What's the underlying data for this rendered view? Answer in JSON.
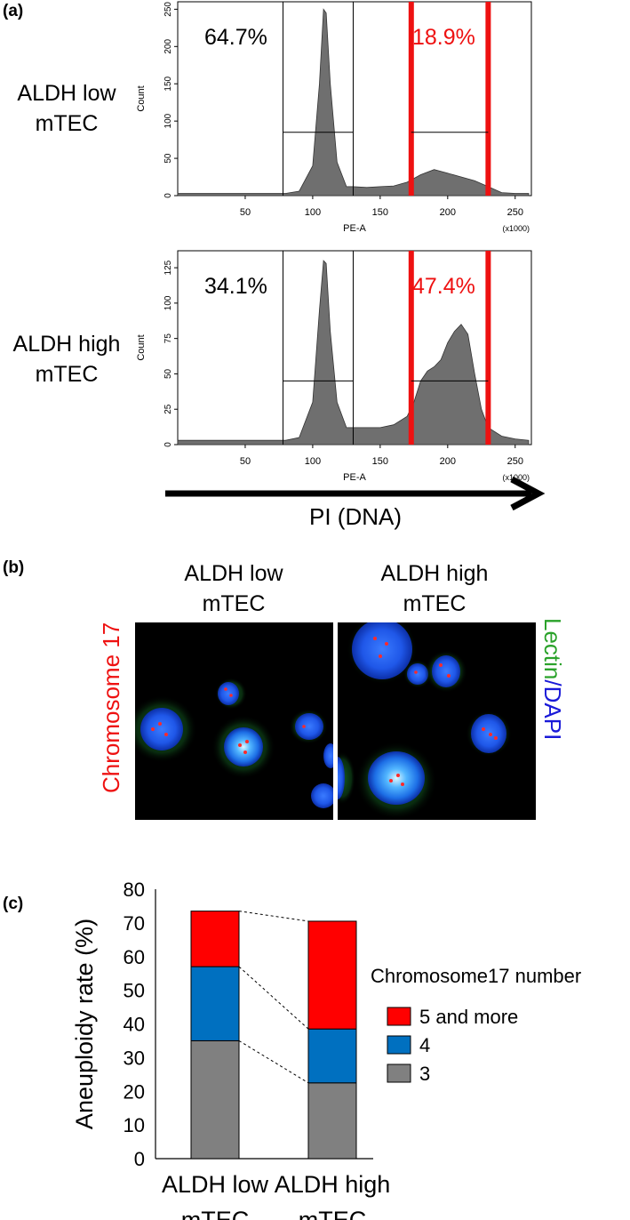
{
  "panels": {
    "a": "(a)",
    "b": "(b)",
    "c": "(c)"
  },
  "colors": {
    "gate_red": "#ee1111",
    "histogram_fill": "#6f6f6f",
    "bar_red": "#ff0000",
    "bar_blue": "#0070c0",
    "bar_gray": "#808080",
    "lectin_green": "#2aa22a",
    "dapi_blue": "#1a1ad8"
  },
  "panel_a": {
    "rows": [
      {
        "label_line1": "ALDH low",
        "label_line2": "mTEC",
        "pct_black": "64.7%",
        "pct_red": "18.9%"
      },
      {
        "label_line1": "ALDH high",
        "label_line2": "mTEC",
        "pct_black": "34.1%",
        "pct_red": "47.4%"
      }
    ],
    "ylabel": "Count",
    "xlabel": "PE-A",
    "x_multiplier": "(x1000)",
    "xticks": [
      "50",
      "100",
      "150",
      "200",
      "250"
    ],
    "arrow_label": "PI (DNA)"
  },
  "panel_b": {
    "col_low_line1": "ALDH low",
    "col_low_line2": "mTEC",
    "col_high_line1": "ALDH high",
    "col_high_line2": "mTEC",
    "left_label": "Chromosome 17",
    "right_label_part1": "Lectin",
    "right_label_sep": "/",
    "right_label_part2": "DAPI"
  },
  "chart_data": [
    {
      "type": "area",
      "x": [
        0,
        80,
        90,
        100,
        105,
        108,
        110,
        113,
        118,
        125,
        130,
        140,
        150,
        160,
        170,
        180,
        190,
        200,
        210,
        220,
        230,
        240,
        250,
        260
      ],
      "values": [
        3,
        3,
        6,
        40,
        150,
        250,
        245,
        150,
        45,
        12,
        12,
        11,
        12,
        13,
        18,
        28,
        35,
        30,
        25,
        20,
        12,
        4,
        3,
        3
      ],
      "xlabel": "PE-A",
      "ylabel": "Count",
      "xlim": [
        0,
        262
      ],
      "ylim": [
        0,
        260
      ],
      "yticks": [
        0,
        50,
        100,
        150,
        200,
        250
      ],
      "xticks": [
        50,
        100,
        150,
        200,
        250
      ],
      "annotations": [
        "64.7%",
        "18.9%"
      ]
    },
    {
      "type": "area",
      "x": [
        0,
        80,
        90,
        100,
        105,
        108,
        110,
        113,
        118,
        125,
        130,
        140,
        150,
        160,
        170,
        175,
        180,
        185,
        190,
        195,
        200,
        205,
        210,
        215,
        220,
        225,
        230,
        240,
        250,
        260
      ],
      "values": [
        3,
        3,
        5,
        30,
        95,
        130,
        128,
        80,
        30,
        12,
        12,
        12,
        12,
        14,
        20,
        30,
        45,
        52,
        55,
        60,
        72,
        80,
        85,
        78,
        50,
        25,
        12,
        6,
        4,
        3
      ],
      "xlabel": "PE-A",
      "ylabel": "Count",
      "xlim": [
        0,
        262
      ],
      "ylim": [
        0,
        137
      ],
      "yticks": [
        0,
        25,
        50,
        75,
        100,
        125
      ],
      "xticks": [
        50,
        100,
        150,
        200,
        250
      ],
      "annotations": [
        "34.1%",
        "47.4%"
      ]
    },
    {
      "type": "bar",
      "stacked": true,
      "categories": [
        "ALDH low mTEC",
        "ALDH high mTEC"
      ],
      "category_lines": [
        [
          "ALDH low",
          "mTEC"
        ],
        [
          "ALDH high",
          "mTEC"
        ]
      ],
      "series": [
        {
          "name": "3",
          "values": [
            35,
            22.5
          ]
        },
        {
          "name": "4",
          "values": [
            22,
            16
          ]
        },
        {
          "name": "5 and more",
          "values": [
            16.5,
            32
          ]
        }
      ],
      "ylabel": "Aneuploidy rate (%)",
      "ylim": [
        0,
        80
      ],
      "yticks": [
        0,
        10,
        20,
        30,
        40,
        50,
        60,
        70,
        80
      ],
      "legend_title": "Chromosome17 number",
      "legend_order": [
        "5 and more",
        "4",
        "3"
      ],
      "legend_position": "right"
    }
  ]
}
